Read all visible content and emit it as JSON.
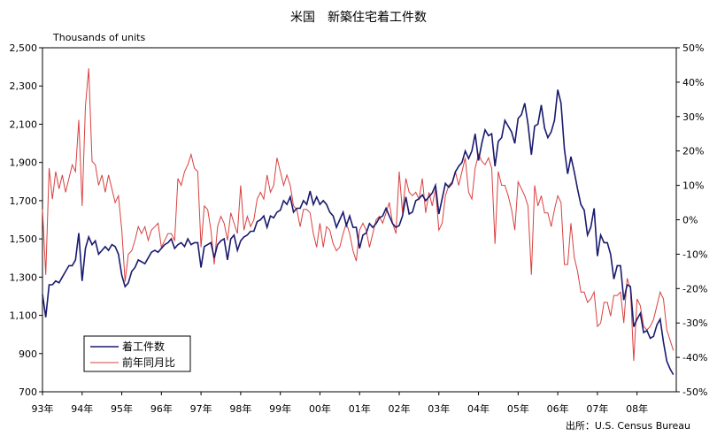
{
  "chart_data": {
    "type": "line",
    "title": "米国　新築住宅着工件数",
    "ylabel_left": "Thousands of units",
    "source": "出所：U.S. Census Bureau",
    "y_left": {
      "min": 700,
      "max": 2500,
      "ticks": [
        700,
        900,
        1100,
        1300,
        1500,
        1700,
        1900,
        2100,
        2300,
        2500
      ],
      "tick_labels": [
        "700",
        "900",
        "1,100",
        "1,300",
        "1,500",
        "1,700",
        "1,900",
        "2,100",
        "2,300",
        "2,500"
      ]
    },
    "y_right": {
      "min": -50,
      "max": 50,
      "ticks": [
        -50,
        -40,
        -30,
        -20,
        -10,
        0,
        10,
        20,
        30,
        40,
        50
      ],
      "tick_labels": [
        "-50%",
        "-40%",
        "-30%",
        "-20%",
        "-10%",
        "0%",
        "10%",
        "20%",
        "30%",
        "40%",
        "50%"
      ]
    },
    "x": {
      "start": 1993.0,
      "end": 2008.99,
      "ticks": [
        1993,
        1994,
        1995,
        1996,
        1997,
        1998,
        1999,
        2000,
        2001,
        2002,
        2003,
        2004,
        2005,
        2006,
        2007,
        2008
      ],
      "tick_labels": [
        "93年",
        "94年",
        "95年",
        "96年",
        "97年",
        "98年",
        "99年",
        "00年",
        "01年",
        "02年",
        "03年",
        "04年",
        "05年",
        "06年",
        "07年",
        "08年"
      ]
    },
    "legend": {
      "placement": "bottom-left",
      "entries": [
        "着工件数",
        "前年同月比"
      ]
    },
    "grid": false,
    "series": [
      {
        "name": "着工件数",
        "axis": "left",
        "color": "#1a1a6e",
        "start_year": 1993,
        "start_month": 1,
        "values": [
          1210,
          1090,
          1260,
          1260,
          1280,
          1270,
          1300,
          1330,
          1360,
          1360,
          1390,
          1530,
          1280,
          1450,
          1510,
          1470,
          1490,
          1420,
          1440,
          1460,
          1440,
          1470,
          1460,
          1420,
          1310,
          1250,
          1270,
          1330,
          1350,
          1390,
          1380,
          1370,
          1400,
          1430,
          1440,
          1430,
          1450,
          1470,
          1480,
          1500,
          1450,
          1470,
          1480,
          1460,
          1500,
          1470,
          1480,
          1480,
          1350,
          1460,
          1470,
          1480,
          1400,
          1470,
          1490,
          1500,
          1390,
          1500,
          1520,
          1440,
          1490,
          1510,
          1520,
          1540,
          1540,
          1590,
          1600,
          1620,
          1560,
          1620,
          1610,
          1640,
          1650,
          1700,
          1680,
          1720,
          1640,
          1660,
          1660,
          1700,
          1680,
          1750,
          1680,
          1720,
          1680,
          1700,
          1680,
          1640,
          1620,
          1560,
          1600,
          1640,
          1570,
          1620,
          1560,
          1560,
          1450,
          1520,
          1530,
          1580,
          1560,
          1580,
          1610,
          1620,
          1660,
          1620,
          1580,
          1560,
          1570,
          1620,
          1720,
          1630,
          1640,
          1700,
          1710,
          1730,
          1700,
          1720,
          1740,
          1780,
          1630,
          1710,
          1790,
          1770,
          1790,
          1850,
          1880,
          1900,
          1960,
          1920,
          1960,
          2050,
          1910,
          2000,
          2070,
          2040,
          2050,
          1880,
          2010,
          2030,
          2120,
          2090,
          2060,
          2000,
          2130,
          2150,
          2210,
          2100,
          1940,
          2090,
          2100,
          2200,
          2080,
          2030,
          2060,
          2120,
          2280,
          2210,
          1970,
          1840,
          1930,
          1850,
          1760,
          1680,
          1650,
          1520,
          1560,
          1660,
          1410,
          1520,
          1480,
          1480,
          1420,
          1290,
          1360,
          1360,
          1180,
          1260,
          1250,
          1040,
          1080,
          1110,
          1010,
          1020,
          980,
          990,
          1050,
          1080,
          960,
          860,
          820,
          790
        ]
      },
      {
        "name": "前年同月比",
        "axis": "right",
        "color": "#d94040",
        "start_year": 1993,
        "start_month": 1,
        "values": [
          3,
          -16,
          15,
          6,
          14,
          9,
          13,
          8,
          12,
          16,
          14,
          29,
          4,
          33,
          44,
          17,
          16,
          10,
          13,
          8,
          13,
          9,
          5,
          7,
          -3,
          -18,
          -10,
          -9,
          -6,
          -2,
          -4,
          -2,
          -6,
          -3,
          -2,
          -1,
          -8,
          -6,
          -4,
          -4,
          -6,
          12,
          10,
          14,
          16,
          19,
          15,
          14,
          -8,
          4,
          3,
          -3,
          -13,
          -2,
          1,
          -1,
          -6,
          2,
          -1,
          -4,
          10,
          -3,
          1,
          -2,
          0,
          6,
          8,
          6,
          13,
          8,
          10,
          18,
          14,
          10,
          13,
          10,
          4,
          3,
          -2,
          3,
          3,
          2,
          -4,
          -8,
          -1,
          -8,
          -2,
          -3,
          -7,
          -9,
          -8,
          -4,
          -1,
          -4,
          -9,
          -12,
          -3,
          -1,
          -3,
          -8,
          -4,
          0,
          1,
          -1,
          2,
          5,
          -1,
          -4,
          14,
          2,
          12,
          8,
          7,
          8,
          6,
          12,
          2,
          8,
          4,
          9,
          -3,
          -1,
          7,
          10,
          11,
          14,
          10,
          14,
          18,
          8,
          6,
          15,
          19,
          17,
          16,
          18,
          15,
          -7,
          14,
          10,
          10,
          7,
          3,
          -3,
          11,
          9,
          7,
          4,
          -16,
          10,
          4,
          7,
          2,
          2,
          -2,
          3,
          7,
          5,
          -13,
          -13,
          -1,
          -11,
          -15,
          -21,
          -21,
          -24,
          -23,
          -21,
          -31,
          -30,
          -24,
          -24,
          -28,
          -22,
          -22,
          -21,
          -30,
          -17,
          -20,
          -41,
          -23,
          -25,
          -31,
          -32,
          -31,
          -29,
          -25,
          -21,
          -23,
          -32,
          -35,
          -38
        ]
      }
    ]
  }
}
